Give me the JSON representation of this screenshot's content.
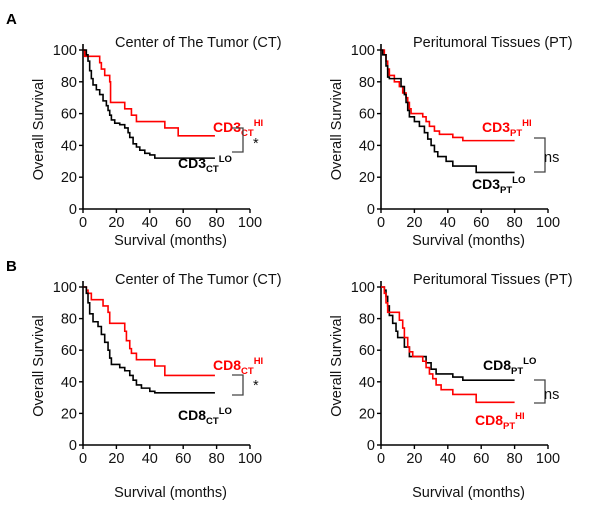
{
  "colors": {
    "hi": "#ff0000",
    "lo": "#000000",
    "axis": "#000000",
    "bracket": "#444444"
  },
  "chart_data": [
    {
      "id": "A-CT",
      "panel_letter": "A",
      "type": "line",
      "subtype": "kaplan-meier-step",
      "title": "Center of The Tumor (CT)",
      "xlabel": "Survival (months)",
      "ylabel": "Overall Survival",
      "xlim": [
        0,
        100
      ],
      "ylim": [
        0,
        100
      ],
      "xticks": [
        "0",
        "20",
        "40",
        "60",
        "80",
        "100"
      ],
      "yticks": [
        "0",
        "20",
        "40",
        "60",
        "80",
        "100"
      ],
      "grid": false,
      "significance": "*",
      "series": [
        {
          "name": "CD3 CT HI",
          "label_main": "CD3",
          "label_sub": "CT",
          "label_sup": "HI",
          "color": "#ff0000",
          "steps": [
            [
              0,
              100
            ],
            [
              1,
              96
            ],
            [
              10,
              92
            ],
            [
              11,
              88
            ],
            [
              13,
              84
            ],
            [
              16,
              80
            ],
            [
              16.5,
              67
            ],
            [
              25,
              63
            ],
            [
              29,
              59
            ],
            [
              32,
              55
            ],
            [
              49,
              51
            ],
            [
              57,
              46
            ],
            [
              79,
              46
            ]
          ]
        },
        {
          "name": "CD3 CT LO",
          "label_main": "CD3",
          "label_sub": "CT",
          "label_sup": "LO",
          "color": "#000000",
          "steps": [
            [
              0,
              100
            ],
            [
              2,
              97
            ],
            [
              3,
              93
            ],
            [
              4,
              87
            ],
            [
              5,
              82
            ],
            [
              6,
              78
            ],
            [
              8,
              75
            ],
            [
              10,
              72
            ],
            [
              12,
              68
            ],
            [
              14,
              65
            ],
            [
              15,
              62
            ],
            [
              16,
              59
            ],
            [
              17,
              56
            ],
            [
              19,
              54
            ],
            [
              22,
              53
            ],
            [
              25,
              51
            ],
            [
              27,
              48
            ],
            [
              28,
              45
            ],
            [
              30,
              41
            ],
            [
              32,
              39
            ],
            [
              34,
              37
            ],
            [
              37,
              35
            ],
            [
              40,
              34
            ],
            [
              43,
              32
            ],
            [
              79,
              32
            ]
          ]
        }
      ]
    },
    {
      "id": "A-PT",
      "panel_letter": "",
      "type": "line",
      "subtype": "kaplan-meier-step",
      "title": "Peritumoral Tissues (PT)",
      "xlabel": "Survival (months)",
      "ylabel": "Overall Survival",
      "xlim": [
        0,
        100
      ],
      "ylim": [
        0,
        100
      ],
      "xticks": [
        "0",
        "20",
        "40",
        "60",
        "80",
        "100"
      ],
      "yticks": [
        "0",
        "20",
        "40",
        "60",
        "80",
        "100"
      ],
      "grid": false,
      "significance": "ns",
      "series": [
        {
          "name": "CD3 PT HI",
          "label_main": "CD3",
          "label_sub": "PT",
          "label_sup": "HI",
          "color": "#ff0000",
          "steps": [
            [
              0,
              100
            ],
            [
              2,
              97
            ],
            [
              3,
              93
            ],
            [
              4,
              88
            ],
            [
              5,
              84
            ],
            [
              8,
              80
            ],
            [
              11,
              77
            ],
            [
              13,
              73
            ],
            [
              15,
              70
            ],
            [
              16,
              67
            ],
            [
              17,
              63
            ],
            [
              18,
              60
            ],
            [
              25,
              58
            ],
            [
              27,
              55
            ],
            [
              29,
              52
            ],
            [
              32,
              49
            ],
            [
              35,
              47
            ],
            [
              43,
              45
            ],
            [
              49,
              43
            ],
            [
              80,
              43
            ]
          ]
        },
        {
          "name": "CD3 PT LO",
          "label_main": "CD3",
          "label_sub": "PT",
          "label_sup": "LO",
          "color": "#000000",
          "steps": [
            [
              0,
              100
            ],
            [
              1,
              97
            ],
            [
              3,
              90
            ],
            [
              4,
              83
            ],
            [
              5,
              82
            ],
            [
              12,
              77
            ],
            [
              14,
              72
            ],
            [
              15,
              67
            ],
            [
              16,
              62
            ],
            [
              17,
              58
            ],
            [
              20,
              55
            ],
            [
              23,
              52
            ],
            [
              26,
              48
            ],
            [
              28,
              44
            ],
            [
              30,
              40
            ],
            [
              32,
              36
            ],
            [
              34,
              33
            ],
            [
              39,
              30
            ],
            [
              43,
              27
            ],
            [
              57,
              23
            ],
            [
              80,
              23
            ]
          ]
        }
      ]
    },
    {
      "id": "B-CT",
      "panel_letter": "B",
      "type": "line",
      "subtype": "kaplan-meier-step",
      "title": "Center of The Tumor (CT)",
      "xlabel": "Survival (months)",
      "ylabel": "Overall Survival",
      "xlim": [
        0,
        100
      ],
      "ylim": [
        0,
        100
      ],
      "xticks": [
        "0",
        "20",
        "40",
        "60",
        "80",
        "100"
      ],
      "yticks": [
        "0",
        "20",
        "40",
        "60",
        "80",
        "100"
      ],
      "grid": false,
      "significance": "*",
      "series": [
        {
          "name": "CD8 CT HI",
          "label_main": "CD8",
          "label_sub": "CT",
          "label_sup": "HI",
          "color": "#ff0000",
          "steps": [
            [
              0,
              100
            ],
            [
              2,
              98
            ],
            [
              3,
              96
            ],
            [
              5,
              92
            ],
            [
              12,
              88
            ],
            [
              15,
              84
            ],
            [
              16,
              77
            ],
            [
              25,
              72
            ],
            [
              26,
              66
            ],
            [
              28,
              61
            ],
            [
              29,
              58
            ],
            [
              32,
              54
            ],
            [
              43,
              50
            ],
            [
              49,
              44
            ],
            [
              57,
              44
            ],
            [
              79,
              44
            ]
          ]
        },
        {
          "name": "CD8 CT LO",
          "label_main": "CD8",
          "label_sub": "CT",
          "label_sup": "LO",
          "color": "#000000",
          "steps": [
            [
              0,
              100
            ],
            [
              2,
              96
            ],
            [
              3,
              90
            ],
            [
              4,
              83
            ],
            [
              6,
              78
            ],
            [
              9,
              75
            ],
            [
              11,
              70
            ],
            [
              13,
              65
            ],
            [
              15,
              60
            ],
            [
              16,
              55
            ],
            [
              17,
              51
            ],
            [
              22,
              49
            ],
            [
              25,
              47
            ],
            [
              28,
              44
            ],
            [
              30,
              41
            ],
            [
              32,
              38
            ],
            [
              35,
              36
            ],
            [
              40,
              34
            ],
            [
              43,
              33
            ],
            [
              79,
              33
            ]
          ]
        }
      ]
    },
    {
      "id": "B-PT",
      "panel_letter": "",
      "type": "line",
      "subtype": "kaplan-meier-step",
      "title": "Peritumoral Tissues (PT)",
      "xlabel": "Survival (months)",
      "ylabel": "Overall Survival",
      "xlim": [
        0,
        100
      ],
      "ylim": [
        0,
        100
      ],
      "xticks": [
        "0",
        "20",
        "40",
        "60",
        "80",
        "100"
      ],
      "yticks": [
        "0",
        "20",
        "40",
        "60",
        "80",
        "100"
      ],
      "grid": false,
      "significance": "ns",
      "series": [
        {
          "name": "CD8 PT LO",
          "label_main": "CD8",
          "label_sub": "PT",
          "label_sup": "LO",
          "color": "#000000",
          "steps": [
            [
              0,
              100
            ],
            [
              2,
              98
            ],
            [
              3,
              94
            ],
            [
              4,
              88
            ],
            [
              5,
              82
            ],
            [
              7,
              77
            ],
            [
              9,
              72
            ],
            [
              10,
              68
            ],
            [
              14,
              62
            ],
            [
              17,
              56
            ],
            [
              25,
              56
            ],
            [
              27,
              52
            ],
            [
              30,
              48
            ],
            [
              33,
              45
            ],
            [
              43,
              43
            ],
            [
              49,
              41
            ],
            [
              80,
              41
            ]
          ]
        },
        {
          "name": "CD8 PT HI",
          "label_main": "CD8",
          "label_sub": "PT",
          "label_sup": "HI",
          "color": "#ff0000",
          "steps": [
            [
              0,
              100
            ],
            [
              2,
              96
            ],
            [
              3,
              90
            ],
            [
              4,
              84
            ],
            [
              11,
              79
            ],
            [
              13,
              74
            ],
            [
              14,
              68
            ],
            [
              16,
              62
            ],
            [
              17,
              59
            ],
            [
              19,
              56
            ],
            [
              25,
              53
            ],
            [
              27,
              49
            ],
            [
              29,
              45
            ],
            [
              31,
              42
            ],
            [
              33,
              38
            ],
            [
              36,
              35
            ],
            [
              43,
              32
            ],
            [
              57,
              27
            ],
            [
              80,
              27
            ]
          ]
        }
      ]
    }
  ]
}
